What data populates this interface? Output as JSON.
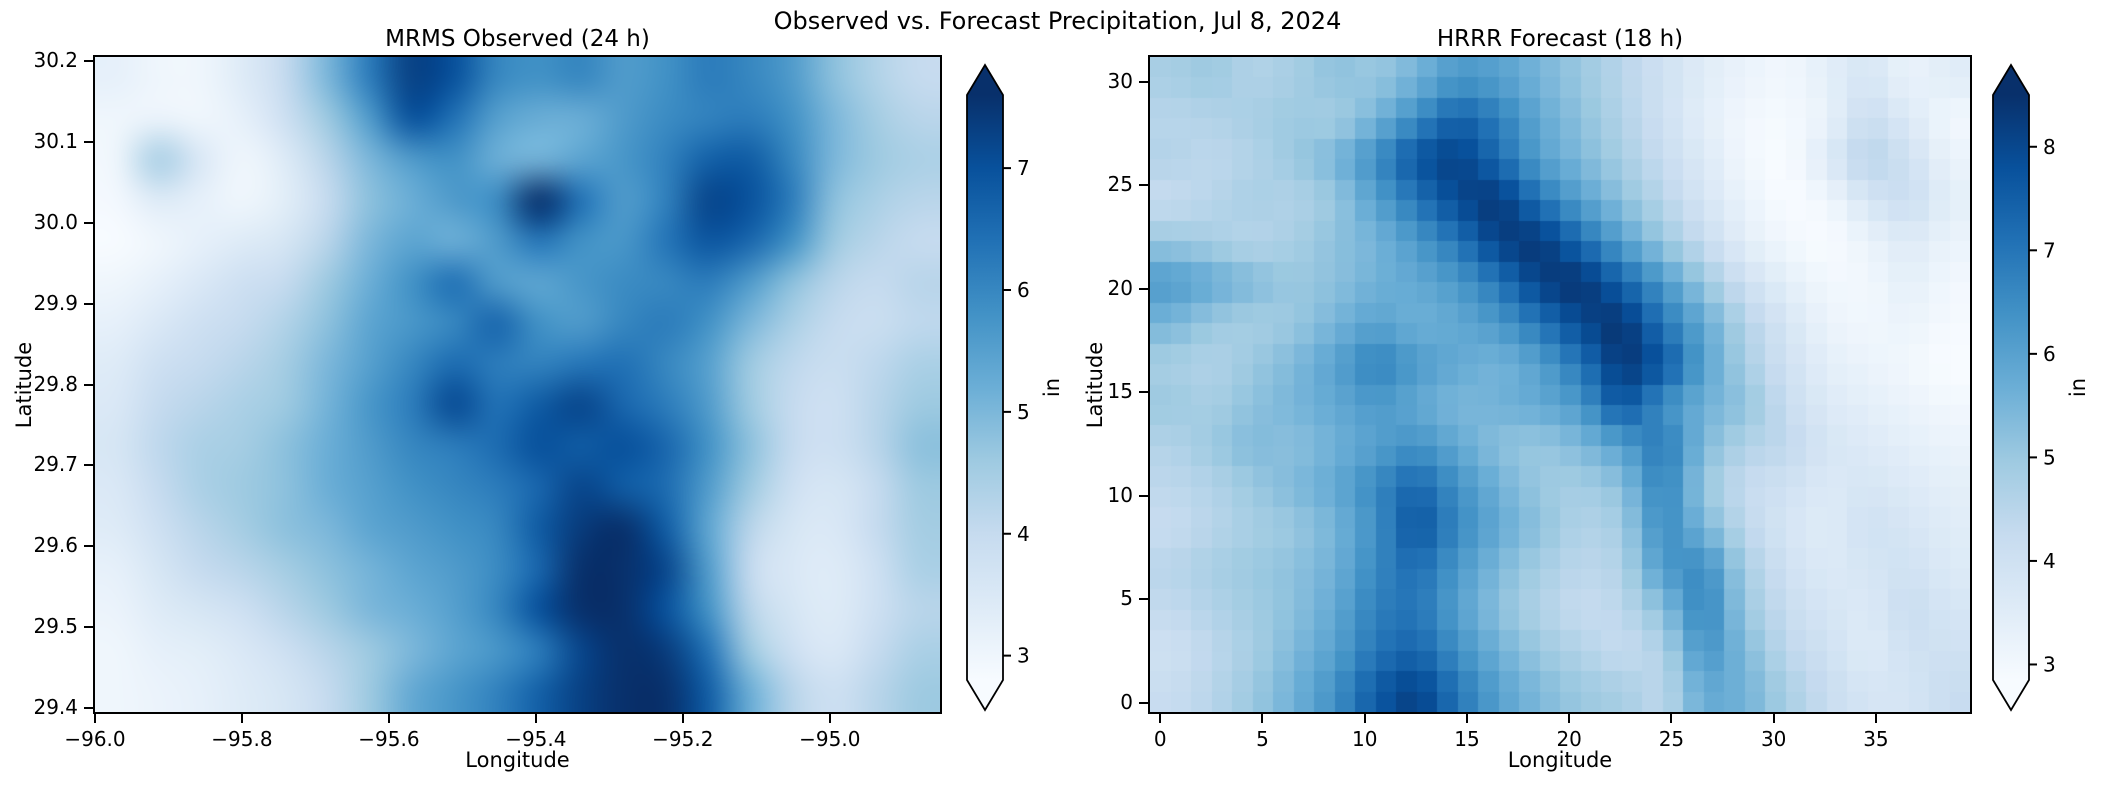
{
  "figure": {
    "title": "Observed vs. Forecast Precipitation, Jul 8, 2024",
    "background": "#ffffff",
    "text_color": "#000000",
    "spine_color": "#000000"
  },
  "colormap": {
    "name": "Blues",
    "stops": [
      [
        0.0,
        "#f7fbff"
      ],
      [
        0.125,
        "#deebf7"
      ],
      [
        0.25,
        "#c6dbef"
      ],
      [
        0.375,
        "#9ecae1"
      ],
      [
        0.5,
        "#6baed6"
      ],
      [
        0.625,
        "#4292c6"
      ],
      [
        0.75,
        "#2171b5"
      ],
      [
        0.875,
        "#08519c"
      ],
      [
        1.0,
        "#08306b"
      ]
    ]
  },
  "chart_data": [
    {
      "type": "heatmap",
      "title": "MRMS Observed (24 h)",
      "xlabel": "Longitude",
      "ylabel": "Latitude",
      "x_range": [
        -96.0,
        -94.85
      ],
      "y_range": [
        29.395,
        30.205
      ],
      "x_ticks": {
        "values": [
          -96.0,
          -95.8,
          -95.6,
          -95.4,
          -95.2,
          -95.0
        ],
        "labels": [
          "−96.0",
          "−95.8",
          "−95.6",
          "−95.4",
          "−95.2",
          "−95.0"
        ]
      },
      "y_ticks": {
        "values": [
          30.2,
          30.1,
          30.0,
          29.9,
          29.8,
          29.7,
          29.6,
          29.5,
          29.4
        ],
        "labels": [
          "30.2",
          "30.1",
          "30.0",
          "29.9",
          "29.8",
          "29.7",
          "29.6",
          "29.5",
          "29.4"
        ]
      },
      "vmin": 2.8,
      "vmax": 7.6,
      "render": "smooth",
      "values": [
        [
          3.2,
          3.0,
          3.0,
          3.4,
          4.0,
          5.0,
          6.2,
          7.3,
          7.0,
          6.0,
          5.8,
          6.0,
          5.6,
          5.8,
          6.2,
          6.0,
          5.6,
          4.8,
          4.3,
          4.0
        ],
        [
          3.0,
          3.1,
          3.0,
          3.2,
          3.8,
          4.6,
          5.6,
          7.0,
          6.4,
          5.5,
          5.2,
          5.2,
          5.6,
          5.9,
          6.1,
          6.2,
          5.8,
          5.0,
          4.5,
          4.2
        ],
        [
          3.0,
          4.4,
          3.5,
          3.0,
          3.4,
          4.2,
          5.0,
          5.6,
          5.8,
          5.2,
          5.1,
          5.4,
          5.7,
          6.1,
          6.7,
          6.8,
          6.0,
          5.0,
          4.6,
          4.4
        ],
        [
          2.9,
          3.4,
          3.2,
          3.0,
          3.3,
          4.0,
          4.8,
          5.2,
          5.6,
          5.9,
          7.8,
          6.4,
          5.6,
          6.1,
          7.2,
          7.0,
          6.2,
          4.8,
          4.4,
          4.2
        ],
        [
          2.8,
          3.0,
          3.2,
          3.4,
          3.6,
          4.2,
          5.0,
          5.4,
          5.2,
          5.6,
          6.3,
          5.8,
          5.7,
          6.3,
          6.9,
          6.6,
          5.8,
          4.6,
          4.2,
          4.0
        ],
        [
          3.0,
          3.2,
          3.5,
          3.8,
          4.0,
          4.6,
          5.2,
          5.8,
          6.4,
          5.6,
          5.4,
          5.7,
          5.9,
          6.0,
          6.2,
          5.6,
          4.8,
          4.2,
          4.0,
          4.2
        ],
        [
          3.2,
          3.5,
          3.8,
          4.0,
          4.3,
          4.8,
          5.4,
          5.7,
          6.0,
          6.6,
          5.8,
          5.6,
          6.0,
          6.2,
          5.8,
          5.0,
          4.4,
          4.0,
          3.9,
          4.1
        ],
        [
          3.4,
          3.8,
          4.0,
          4.2,
          4.5,
          5.0,
          5.5,
          6.0,
          6.5,
          6.2,
          6.1,
          6.3,
          6.4,
          6.0,
          5.5,
          4.6,
          4.1,
          3.9,
          4.1,
          4.4
        ],
        [
          3.5,
          4.0,
          4.2,
          4.4,
          4.6,
          5.1,
          5.7,
          6.2,
          7.1,
          6.4,
          6.8,
          7.2,
          6.6,
          6.2,
          5.6,
          4.6,
          4.0,
          3.8,
          4.2,
          4.6
        ],
        [
          3.6,
          4.1,
          4.4,
          4.5,
          4.8,
          5.2,
          5.6,
          6.0,
          6.2,
          6.5,
          7.0,
          6.8,
          7.0,
          6.6,
          5.8,
          4.8,
          4.0,
          3.8,
          4.2,
          4.8
        ],
        [
          3.5,
          4.0,
          4.4,
          4.6,
          4.8,
          5.2,
          5.5,
          5.8,
          6.0,
          6.2,
          6.6,
          7.2,
          6.8,
          6.5,
          5.6,
          4.6,
          3.8,
          3.6,
          4.0,
          4.6
        ],
        [
          3.4,
          3.8,
          4.2,
          4.5,
          4.8,
          5.0,
          5.4,
          5.6,
          5.8,
          6.0,
          6.8,
          7.4,
          7.6,
          6.8,
          5.4,
          4.2,
          3.6,
          3.5,
          4.0,
          4.5
        ],
        [
          3.2,
          3.6,
          4.0,
          4.2,
          4.5,
          4.8,
          5.1,
          5.4,
          5.6,
          5.9,
          6.6,
          7.6,
          7.8,
          7.2,
          5.6,
          4.0,
          3.5,
          3.4,
          3.8,
          4.4
        ],
        [
          3.1,
          3.4,
          3.6,
          3.8,
          4.2,
          4.6,
          5.0,
          5.2,
          5.5,
          6.0,
          7.0,
          7.8,
          7.6,
          7.0,
          5.8,
          4.2,
          3.6,
          3.4,
          3.8,
          4.2
        ],
        [
          3.0,
          3.2,
          3.3,
          3.5,
          3.8,
          4.2,
          4.6,
          5.0,
          5.4,
          5.7,
          6.2,
          7.2,
          7.8,
          7.4,
          6.4,
          4.6,
          3.8,
          3.5,
          4.0,
          4.4
        ],
        [
          3.0,
          3.1,
          3.2,
          3.4,
          3.6,
          4.0,
          4.6,
          5.3,
          5.7,
          6.1,
          6.7,
          7.3,
          7.8,
          7.6,
          6.8,
          5.2,
          4.2,
          3.8,
          4.2,
          4.6
        ]
      ],
      "colorbar": {
        "label": "in",
        "ticks": [
          3,
          4,
          5,
          6,
          7
        ],
        "extend": "both"
      }
    },
    {
      "type": "heatmap",
      "title": "HRRR Forecast (18 h)",
      "xlabel": "Longitude",
      "ylabel": "Latitude",
      "x_range": [
        -0.5,
        39.6
      ],
      "y_range": [
        -0.45,
        31.2
      ],
      "x_ticks": {
        "values": [
          0,
          5,
          10,
          15,
          20,
          25,
          30,
          35
        ],
        "labels": [
          "0",
          "5",
          "10",
          "15",
          "20",
          "25",
          "30",
          "35"
        ]
      },
      "y_ticks": {
        "values": [
          0,
          5,
          10,
          15,
          20,
          25,
          30
        ],
        "labels": [
          "0",
          "5",
          "10",
          "15",
          "20",
          "25",
          "30"
        ]
      },
      "vmin": 2.85,
      "vmax": 8.5,
      "render": "pixelated",
      "upsample": 2,
      "values": [
        [
          4.8,
          5.0,
          4.6,
          4.8,
          5.2,
          5.0,
          5.5,
          6.2,
          6.0,
          5.5,
          5.0,
          4.5,
          4.0,
          3.5,
          3.2,
          3.0,
          3.4,
          3.8,
          3.2,
          3.5
        ],
        [
          4.5,
          4.6,
          4.8,
          5.0,
          4.8,
          5.5,
          6.5,
          7.5,
          6.8,
          5.8,
          5.2,
          4.6,
          4.0,
          3.4,
          3.0,
          2.9,
          3.2,
          4.2,
          3.6,
          3.0
        ],
        [
          4.6,
          4.4,
          4.6,
          5.0,
          5.5,
          6.5,
          7.8,
          8.2,
          7.2,
          6.0,
          5.4,
          4.8,
          4.2,
          3.6,
          3.0,
          2.8,
          3.6,
          4.6,
          4.0,
          3.2
        ],
        [
          4.2,
          4.5,
          4.8,
          4.6,
          5.0,
          6.0,
          7.0,
          8.0,
          8.4,
          7.0,
          6.0,
          5.2,
          4.5,
          3.8,
          3.2,
          2.8,
          3.0,
          3.8,
          4.2,
          3.4
        ],
        [
          5.0,
          4.8,
          4.5,
          4.8,
          5.2,
          5.5,
          6.2,
          7.0,
          8.2,
          8.4,
          7.2,
          6.0,
          5.0,
          4.2,
          3.4,
          3.0,
          2.8,
          3.2,
          3.6,
          3.2
        ],
        [
          6.2,
          5.8,
          5.4,
          5.0,
          5.2,
          5.6,
          5.8,
          6.2,
          7.0,
          8.2,
          8.5,
          7.4,
          6.2,
          5.0,
          4.0,
          3.4,
          3.0,
          3.0,
          3.4,
          3.0
        ],
        [
          5.5,
          5.0,
          4.8,
          5.0,
          5.5,
          6.0,
          5.6,
          5.8,
          6.2,
          7.0,
          8.0,
          8.5,
          7.0,
          5.8,
          4.6,
          3.8,
          3.2,
          3.0,
          3.2,
          2.9
        ],
        [
          4.8,
          4.6,
          5.0,
          5.4,
          6.0,
          6.8,
          6.2,
          5.8,
          5.5,
          6.0,
          7.0,
          8.4,
          7.8,
          6.0,
          4.8,
          4.0,
          3.4,
          3.2,
          3.0,
          2.8
        ],
        [
          5.0,
          4.8,
          5.2,
          5.5,
          5.8,
          6.2,
          5.8,
          5.4,
          5.6,
          5.8,
          6.2,
          7.8,
          6.4,
          5.6,
          5.2,
          4.2,
          3.6,
          3.4,
          3.2,
          3.0
        ],
        [
          4.6,
          5.0,
          5.4,
          5.2,
          5.6,
          6.0,
          6.4,
          5.8,
          5.2,
          5.0,
          5.4,
          6.0,
          7.0,
          5.4,
          4.6,
          4.4,
          3.8,
          3.6,
          3.4,
          3.2
        ],
        [
          4.4,
          4.6,
          5.0,
          5.4,
          5.8,
          6.6,
          7.4,
          6.4,
          5.6,
          5.0,
          4.8,
          5.2,
          6.8,
          5.0,
          4.2,
          4.0,
          3.6,
          3.8,
          3.6,
          3.4
        ],
        [
          4.2,
          4.5,
          4.8,
          5.0,
          5.5,
          6.4,
          7.8,
          6.6,
          5.8,
          5.2,
          4.6,
          4.8,
          6.6,
          5.5,
          4.4,
          3.8,
          3.5,
          4.0,
          3.8,
          3.5
        ],
        [
          4.5,
          4.8,
          5.0,
          5.2,
          5.6,
          6.6,
          7.2,
          6.2,
          5.4,
          4.8,
          4.4,
          4.6,
          6.2,
          6.6,
          4.8,
          4.0,
          3.6,
          3.8,
          4.0,
          3.6
        ],
        [
          4.3,
          4.6,
          4.9,
          5.2,
          5.8,
          6.8,
          7.0,
          6.0,
          5.2,
          4.6,
          4.2,
          4.4,
          5.2,
          6.8,
          5.0,
          4.2,
          3.8,
          3.6,
          4.2,
          3.8
        ],
        [
          4.0,
          4.4,
          4.8,
          5.4,
          6.0,
          7.0,
          7.4,
          6.4,
          5.6,
          5.0,
          4.6,
          4.2,
          4.6,
          6.4,
          5.4,
          4.4,
          4.0,
          3.5,
          4.0,
          4.0
        ],
        [
          4.2,
          4.5,
          5.0,
          5.6,
          6.4,
          7.6,
          8.2,
          7.0,
          6.0,
          5.4,
          5.0,
          4.8,
          4.4,
          5.8,
          5.6,
          4.8,
          4.2,
          3.8,
          3.8,
          4.2
        ]
      ],
      "colorbar": {
        "label": "in",
        "ticks": [
          3,
          4,
          5,
          6,
          7,
          8
        ],
        "extend": "both"
      }
    }
  ]
}
